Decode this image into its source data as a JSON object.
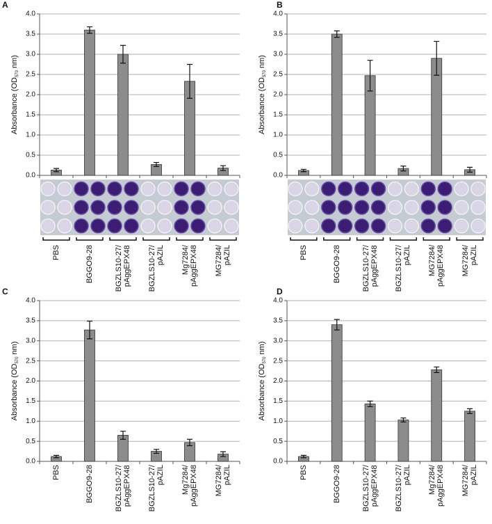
{
  "chart_data": [
    {
      "type": "bar",
      "panel": "A",
      "ylabel_parts": [
        "Absorbance (OD",
        "570",
        " nm)"
      ],
      "categories": [
        "PBS",
        "BGGO9-28",
        "BGZLS10-27/\npAggEPX48",
        "BGZLS10-27/\npAZIL",
        "Mg7284/\npAggEPX48",
        "MG7284/\npAZIL"
      ],
      "values": [
        0.13,
        3.6,
        3.0,
        0.27,
        2.33,
        0.18
      ],
      "errors": [
        0.04,
        0.08,
        0.22,
        0.05,
        0.42,
        0.06
      ],
      "color": "#8c8c8c",
      "ylim": [
        0,
        4
      ],
      "grid": true,
      "yticks": [
        {
          "value": 0,
          "label": "0.0"
        },
        0.5,
        {
          "value": 1,
          "label": "1.0"
        },
        1.5,
        {
          "value": 2,
          "label": "2.0"
        },
        2.5,
        {
          "value": 3,
          "label": "3.0"
        },
        3.5,
        {
          "value": 4,
          "label": "4.0"
        }
      ]
    },
    {
      "type": "bar",
      "panel": "B",
      "ylabel_parts": [
        "Absorbance (OD",
        "570",
        " nm)"
      ],
      "categories": [
        "PBS",
        "BGGO9-28",
        "BGZLS10-27/\npAggEPX48",
        "BGZLS10-27/\npAZIL",
        "MG7284/\npAggEPX48",
        "MG7284/\npAZIL"
      ],
      "values": [
        0.12,
        3.5,
        2.47,
        0.17,
        2.9,
        0.14
      ],
      "errors": [
        0.03,
        0.08,
        0.38,
        0.06,
        0.42,
        0.06
      ],
      "color": "#8c8c8c",
      "ylim": [
        0,
        4
      ],
      "grid": true,
      "yticks": [
        {
          "value": 0,
          "label": "0.0"
        },
        0.5,
        {
          "value": 1,
          "label": "1.0"
        },
        1.5,
        {
          "value": 2,
          "label": "2.0"
        },
        2.5,
        {
          "value": 3,
          "label": "3.0"
        },
        3.5,
        {
          "value": 4,
          "label": "4.0"
        }
      ]
    },
    {
      "type": "bar",
      "panel": "C",
      "ylabel_parts": [
        "Absorbance (OD",
        "570",
        " nm)"
      ],
      "categories": [
        "PBS",
        "BGGO9-28",
        "BGZLS10-27/\npAggEPX48",
        "BGZLS10-27/\npAZIL",
        "Mg7284/\npAggEPX48",
        "MG7284/\npAZIL"
      ],
      "values": [
        0.12,
        3.27,
        0.65,
        0.25,
        0.47,
        0.18
      ],
      "errors": [
        0.03,
        0.22,
        0.1,
        0.05,
        0.08,
        0.06
      ],
      "color": "#8c8c8c",
      "ylim": [
        0,
        4
      ],
      "grid": true,
      "yticks": [
        {
          "value": 0,
          "label": "0.0"
        },
        0.5,
        {
          "value": 1,
          "label": "1.0"
        },
        1.5,
        {
          "value": 2,
          "label": "2.0"
        },
        2.5,
        {
          "value": 3,
          "label": "3.0"
        },
        3.5,
        {
          "value": 4,
          "label": "4.0"
        }
      ]
    },
    {
      "type": "bar",
      "panel": "D",
      "ylabel_parts": [
        "Absorbance (OD",
        "570",
        " nm)"
      ],
      "categories": [
        "PBS",
        "BGGO9-28",
        "BGZLS10-27/\npAggEPX48",
        "BGZLS10-27/\npAZIL",
        "Mg7284/\npAggEPX48",
        "MG7284/\npAZIL"
      ],
      "values": [
        0.12,
        3.4,
        1.43,
        1.03,
        2.28,
        1.25
      ],
      "errors": [
        0.03,
        0.13,
        0.07,
        0.05,
        0.07,
        0.06
      ],
      "color": "#8c8c8c",
      "ylim": [
        0,
        4
      ],
      "grid": true,
      "yticks": [
        {
          "value": 0,
          "label": "0.0"
        },
        0.5,
        {
          "value": 1,
          "label": "1.0"
        },
        1.5,
        {
          "value": 2,
          "label": "2.0"
        },
        2.5,
        {
          "value": 3,
          "label": "3.0"
        },
        3.5,
        {
          "value": 4,
          "label": "4.0"
        }
      ]
    }
  ]
}
